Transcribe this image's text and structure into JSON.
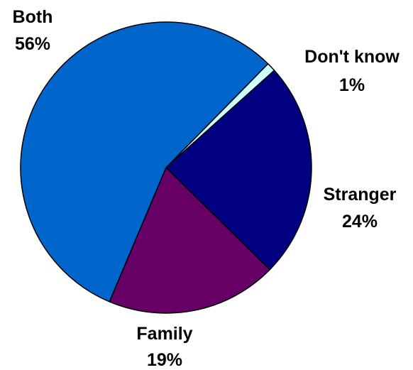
{
  "chart_data": {
    "type": "pie",
    "title": "",
    "slices": [
      {
        "name": "Don't know",
        "value": 1,
        "percent_label": "1%",
        "color": "#ccffff"
      },
      {
        "name": "Stranger",
        "value": 24,
        "percent_label": "24%",
        "color": "#000080"
      },
      {
        "name": "Family",
        "value": 19,
        "percent_label": "19%",
        "color": "#660066"
      },
      {
        "name": "Both",
        "value": 56,
        "percent_label": "56%",
        "color": "#0066cc"
      }
    ],
    "slice_outline_color": "#000000"
  }
}
